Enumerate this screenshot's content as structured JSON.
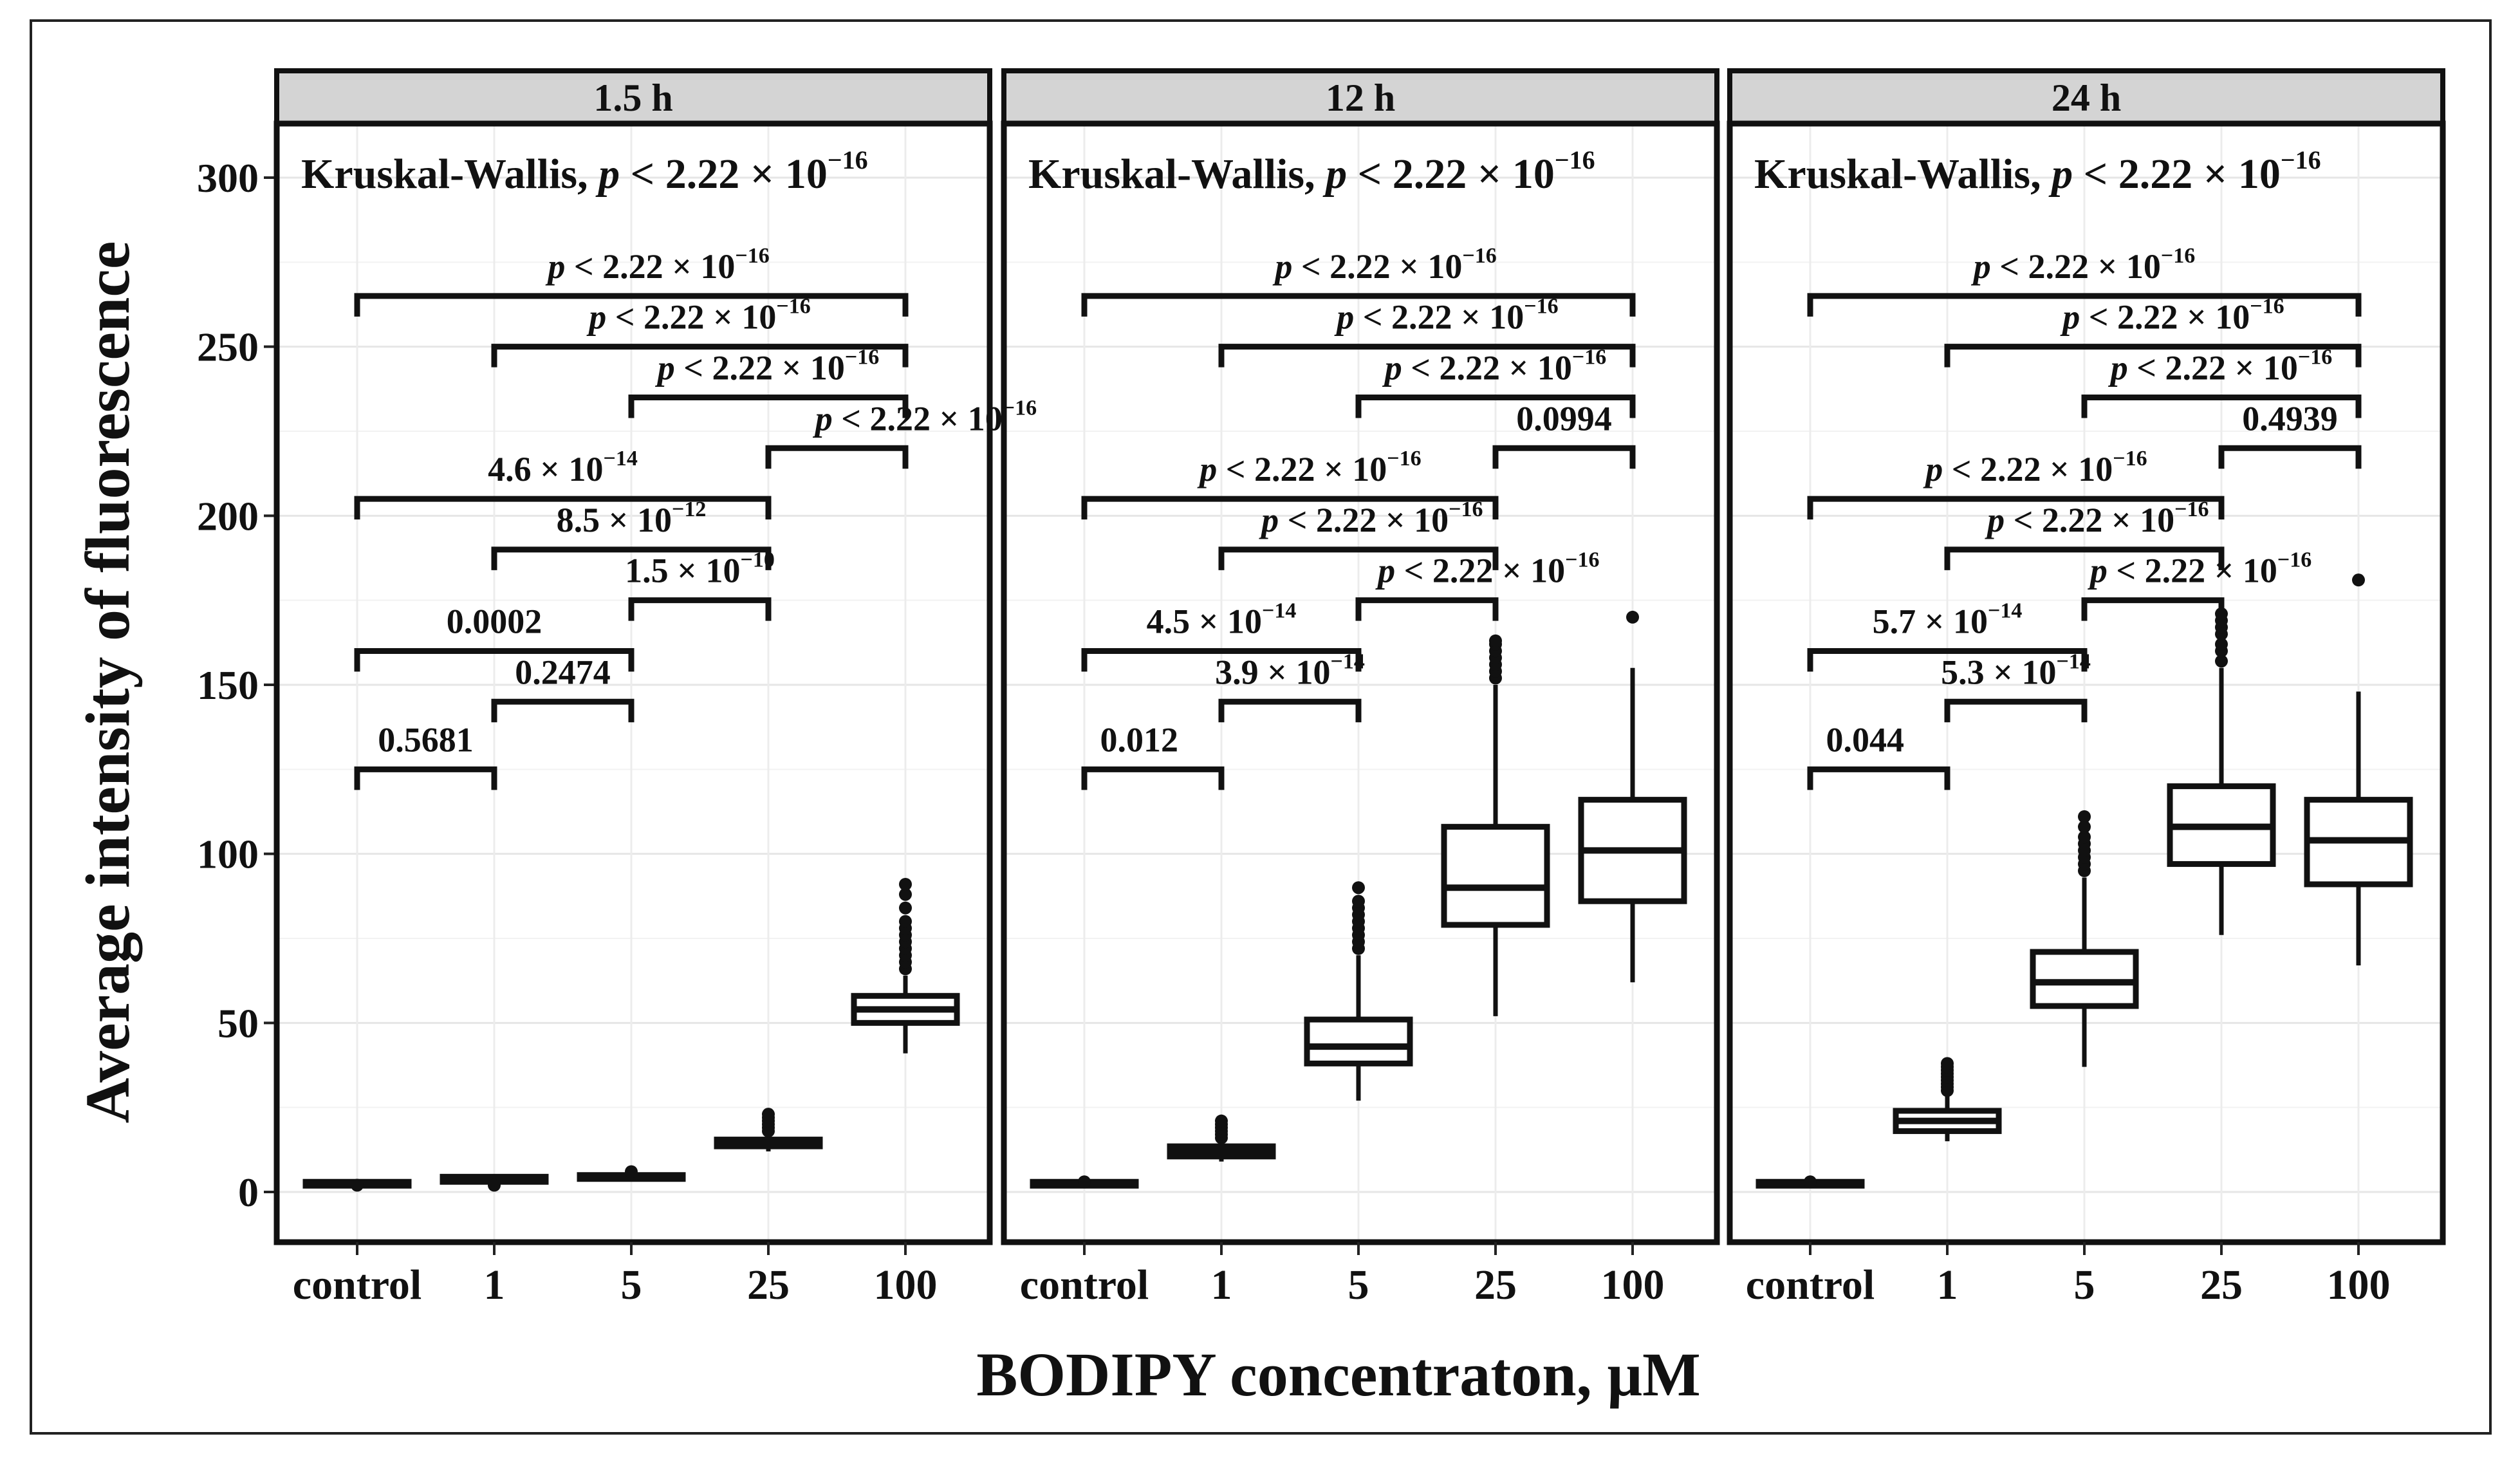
{
  "chart_data": {
    "type": "boxplot",
    "ylabel": "Average intensity of fluorescence",
    "xlabel": "BODIPY concentraton, μM",
    "categories": [
      "control",
      "1",
      "5",
      "25",
      "100"
    ],
    "ylim": [
      -15,
      315
    ],
    "yticks": [
      0,
      50,
      100,
      150,
      200,
      250,
      300
    ],
    "grid": true,
    "panels": [
      {
        "title": "1.5 h",
        "test": {
          "prefix": "Kruskal-Wallis, ",
          "p": "p",
          "text": " < 2.22 × 10",
          "exp": "−16"
        },
        "boxes": [
          {
            "category": "control",
            "q1": 2,
            "median": 2.5,
            "q3": 3,
            "lower": 1.5,
            "upper": 3.5,
            "outliers": [
              2
            ]
          },
          {
            "category": "1",
            "q1": 3,
            "median": 4,
            "q3": 4.5,
            "lower": 2.5,
            "upper": 5,
            "outliers": [
              2
            ]
          },
          {
            "category": "5",
            "q1": 4,
            "median": 4.5,
            "q3": 5,
            "lower": 3.5,
            "upper": 5.5,
            "outliers": [
              6
            ]
          },
          {
            "category": "25",
            "q1": 13.5,
            "median": 14.5,
            "q3": 15.5,
            "lower": 12,
            "upper": 17,
            "outliers": [
              18,
              19,
              20,
              21,
              22,
              23
            ]
          },
          {
            "category": "100",
            "q1": 50,
            "median": 54,
            "q3": 58,
            "lower": 41,
            "upper": 64,
            "outliers": [
              66,
              68,
              70,
              72,
              74,
              76,
              78,
              80,
              84,
              88,
              91
            ]
          }
        ],
        "comparisons": [
          {
            "from": "control",
            "to": "100",
            "y": 265,
            "parts": [
              "p",
              " < 2.22 × 10",
              "−16"
            ],
            "lx": 0.55,
            "dy": -28
          },
          {
            "from": "1",
            "to": "100",
            "y": 250,
            "parts": [
              "p",
              " < 2.22 × 10",
              "−16"
            ],
            "lx": 0.5,
            "dy": -28
          },
          {
            "from": "5",
            "to": "100",
            "y": 235,
            "parts": [
              "p",
              " < 2.22 × 10",
              "−16"
            ],
            "lx": 0.5,
            "dy": -28
          },
          {
            "from": "25",
            "to": "100",
            "y": 220,
            "parts": [
              "p",
              " < 2.22 × 10",
              "−16"
            ],
            "lx": 1.15,
            "dy": -28
          },
          {
            "from": "control",
            "to": "25",
            "y": 205,
            "parts": [
              "",
              "4.6 × 10",
              "−14"
            ],
            "lx": 0.5,
            "dy": -28
          },
          {
            "from": "1",
            "to": "25",
            "y": 190,
            "parts": [
              "",
              "8.5 × 10",
              "−12"
            ],
            "lx": 0.5,
            "dy": -28
          },
          {
            "from": "5",
            "to": "25",
            "y": 175,
            "parts": [
              "",
              "1.5 × 10",
              "−10"
            ],
            "lx": 0.5,
            "dy": -28
          },
          {
            "from": "control",
            "to": "5",
            "y": 160,
            "parts": [
              "",
              "0.0002",
              ""
            ],
            "lx": 0.5,
            "dy": -28
          },
          {
            "from": "1",
            "to": "5",
            "y": 145,
            "parts": [
              "",
              "0.2474",
              ""
            ],
            "lx": 0.5,
            "dy": -28
          },
          {
            "from": "control",
            "to": "1",
            "y": 125,
            "parts": [
              "",
              "0.5681",
              ""
            ],
            "lx": 0.5,
            "dy": -28
          }
        ]
      },
      {
        "title": "12 h",
        "test": {
          "prefix": "Kruskal-Wallis, ",
          "p": "p",
          "text": " < 2.22 × 10",
          "exp": "−16"
        },
        "boxes": [
          {
            "category": "control",
            "q1": 2,
            "median": 2.5,
            "q3": 3,
            "lower": 1.5,
            "upper": 3.5,
            "outliers": [
              3
            ]
          },
          {
            "category": "1",
            "q1": 10.5,
            "median": 12,
            "q3": 13.5,
            "lower": 9,
            "upper": 15,
            "outliers": [
              16,
              17,
              18,
              19,
              20,
              21
            ]
          },
          {
            "category": "5",
            "q1": 38,
            "median": 43,
            "q3": 51,
            "lower": 27,
            "upper": 70,
            "outliers": [
              72,
              74,
              76,
              78,
              80,
              82,
              84,
              86,
              90
            ]
          },
          {
            "category": "25",
            "q1": 79,
            "median": 90,
            "q3": 108,
            "lower": 52,
            "upper": 150,
            "outliers": [
              152,
              154,
              156,
              158,
              160,
              162,
              163
            ]
          },
          {
            "category": "100",
            "q1": 86,
            "median": 101,
            "q3": 116,
            "lower": 62,
            "upper": 155,
            "outliers": [
              170
            ]
          }
        ],
        "comparisons": [
          {
            "from": "control",
            "to": "100",
            "y": 265,
            "parts": [
              "p",
              " < 2.22 × 10",
              "−16"
            ],
            "lx": 0.55,
            "dy": -28
          },
          {
            "from": "1",
            "to": "100",
            "y": 250,
            "parts": [
              "p",
              " < 2.22 × 10",
              "−16"
            ],
            "lx": 0.55,
            "dy": -28
          },
          {
            "from": "5",
            "to": "100",
            "y": 235,
            "parts": [
              "p",
              " < 2.22 × 10",
              "−16"
            ],
            "lx": 0.5,
            "dy": -28
          },
          {
            "from": "25",
            "to": "100",
            "y": 220,
            "parts": [
              "",
              "0.0994",
              ""
            ],
            "lx": 0.5,
            "dy": -28
          },
          {
            "from": "control",
            "to": "25",
            "y": 205,
            "parts": [
              "p",
              " < 2.22 × 10",
              "−16"
            ],
            "lx": 0.55,
            "dy": -28
          },
          {
            "from": "1",
            "to": "25",
            "y": 190,
            "parts": [
              "p",
              " < 2.22 × 10",
              "−16"
            ],
            "lx": 0.55,
            "dy": -28
          },
          {
            "from": "5",
            "to": "25",
            "y": 175,
            "parts": [
              "p",
              " < 2.22 × 10",
              "−16"
            ],
            "lx": 0.95,
            "dy": -28
          },
          {
            "from": "control",
            "to": "5",
            "y": 160,
            "parts": [
              "",
              "4.5 × 10",
              "−14"
            ],
            "lx": 0.5,
            "dy": -28
          },
          {
            "from": "1",
            "to": "5",
            "y": 145,
            "parts": [
              "",
              "3.9 × 10",
              "−14"
            ],
            "lx": 0.5,
            "dy": -28
          },
          {
            "from": "control",
            "to": "1",
            "y": 125,
            "parts": [
              "",
              "0.012",
              ""
            ],
            "lx": 0.4,
            "dy": -28
          }
        ]
      },
      {
        "title": "24 h",
        "test": {
          "prefix": "Kruskal-Wallis, ",
          "p": "p",
          "text": " < 2.22 × 10",
          "exp": "−16"
        },
        "boxes": [
          {
            "category": "control",
            "q1": 2,
            "median": 2.5,
            "q3": 3,
            "lower": 1.5,
            "upper": 3.5,
            "outliers": [
              3
            ]
          },
          {
            "category": "1",
            "q1": 18,
            "median": 21,
            "q3": 24,
            "lower": 15,
            "upper": 29,
            "outliers": [
              30,
              31,
              32,
              33,
              34,
              35,
              36,
              37,
              38
            ]
          },
          {
            "category": "5",
            "q1": 55,
            "median": 62,
            "q3": 71,
            "lower": 37,
            "upper": 93,
            "outliers": [
              95,
              97,
              99,
              101,
              103,
              105,
              108,
              111
            ]
          },
          {
            "category": "25",
            "q1": 97,
            "median": 108,
            "q3": 120,
            "lower": 76,
            "upper": 155,
            "outliers": [
              157,
              160,
              162,
              165,
              167,
              169,
              171
            ]
          },
          {
            "category": "100",
            "q1": 91,
            "median": 104,
            "q3": 116,
            "lower": 67,
            "upper": 148,
            "outliers": [
              181
            ]
          }
        ],
        "comparisons": [
          {
            "from": "control",
            "to": "100",
            "y": 265,
            "parts": [
              "p",
              " < 2.22 × 10",
              "−16"
            ],
            "lx": 0.5,
            "dy": -28
          },
          {
            "from": "1",
            "to": "100",
            "y": 250,
            "parts": [
              "p",
              " < 2.22 × 10",
              "−16"
            ],
            "lx": 0.55,
            "dy": -28
          },
          {
            "from": "5",
            "to": "100",
            "y": 235,
            "parts": [
              "p",
              " < 2.22 × 10",
              "−16"
            ],
            "lx": 0.5,
            "dy": -28
          },
          {
            "from": "25",
            "to": "100",
            "y": 220,
            "parts": [
              "",
              "0.4939",
              ""
            ],
            "lx": 0.5,
            "dy": -28
          },
          {
            "from": "control",
            "to": "25",
            "y": 205,
            "parts": [
              "p",
              " < 2.22 × 10",
              "−16"
            ],
            "lx": 0.55,
            "dy": -28
          },
          {
            "from": "1",
            "to": "25",
            "y": 190,
            "parts": [
              "p",
              " < 2.22 × 10",
              "−16"
            ],
            "lx": 0.55,
            "dy": -28
          },
          {
            "from": "5",
            "to": "25",
            "y": 175,
            "parts": [
              "p",
              " < 2.22 × 10",
              "−16"
            ],
            "lx": 0.85,
            "dy": -28
          },
          {
            "from": "control",
            "to": "5",
            "y": 160,
            "parts": [
              "",
              "5.7 × 10",
              "−14"
            ],
            "lx": 0.5,
            "dy": -28
          },
          {
            "from": "1",
            "to": "5",
            "y": 145,
            "parts": [
              "",
              "5.3 × 10",
              "−14"
            ],
            "lx": 0.5,
            "dy": -28
          },
          {
            "from": "control",
            "to": "1",
            "y": 125,
            "parts": [
              "",
              "0.044",
              ""
            ],
            "lx": 0.4,
            "dy": -28
          }
        ]
      }
    ]
  }
}
